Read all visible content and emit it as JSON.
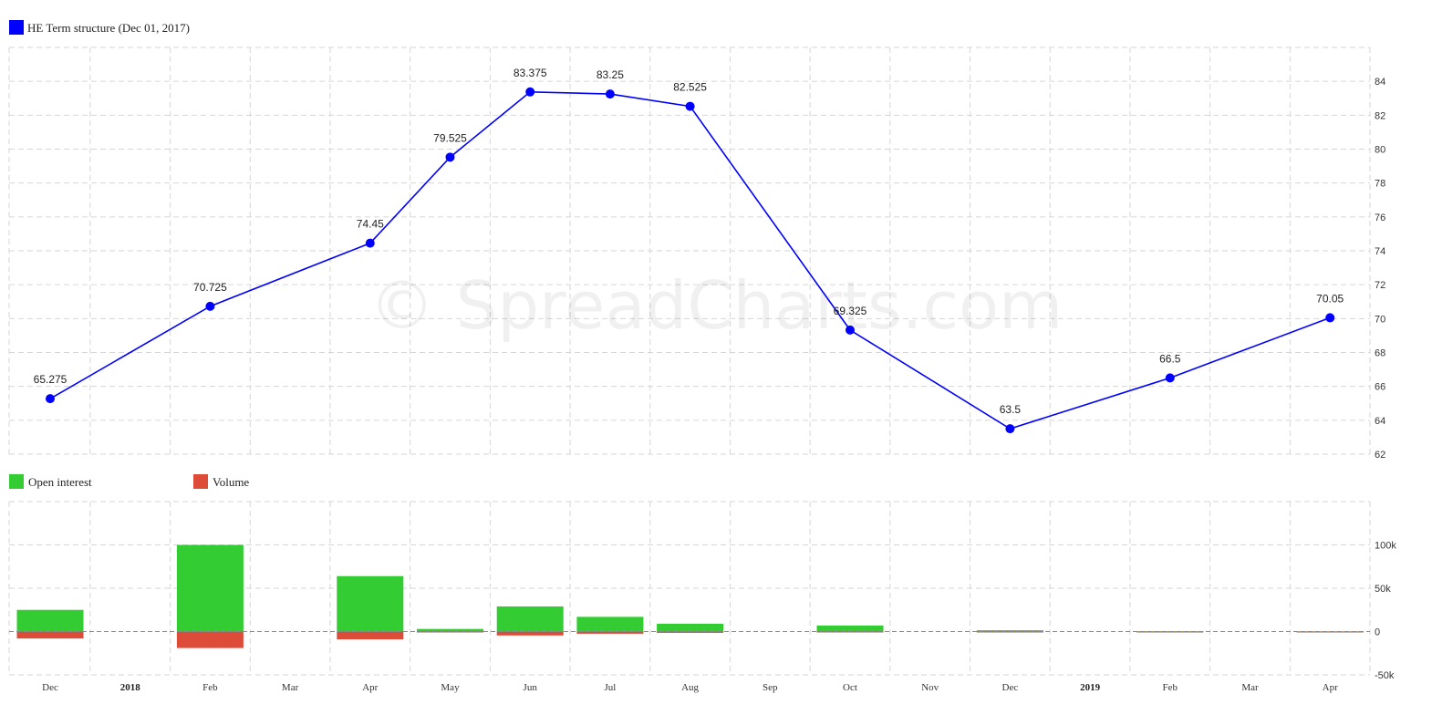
{
  "chart_data": [
    {
      "type": "line",
      "title": "HE Term structure (Dec 01, 2017)",
      "series": [
        {
          "name": "HE Term structure (Dec 01, 2017)",
          "color": "#0000ff",
          "points": [
            {
              "x": "Dec 2017",
              "y": 65.275,
              "label": "65.275"
            },
            {
              "x": "Feb 2018",
              "y": 70.725,
              "label": "70.725"
            },
            {
              "x": "Apr 2018",
              "y": 74.45,
              "label": "74.45"
            },
            {
              "x": "May 2018",
              "y": 79.525,
              "label": "79.525"
            },
            {
              "x": "Jun 2018",
              "y": 83.375,
              "label": "83.375"
            },
            {
              "x": "Jul 2018",
              "y": 83.25,
              "label": "83.25"
            },
            {
              "x": "Aug 2018",
              "y": 82.525,
              "label": "82.525"
            },
            {
              "x": "Oct 2018",
              "y": 69.325,
              "label": "69.325"
            },
            {
              "x": "Dec 2018",
              "y": 63.5,
              "label": "63.5"
            },
            {
              "x": "Feb 2019",
              "y": 66.5,
              "label": "66.5"
            },
            {
              "x": "Apr 2019",
              "y": 70.05,
              "label": "70.05"
            }
          ]
        }
      ],
      "y_ticks": [
        "62",
        "64",
        "66",
        "68",
        "70",
        "72",
        "74",
        "76",
        "78",
        "80",
        "82",
        "84"
      ],
      "ylim": [
        62,
        86
      ],
      "grid": true,
      "legend_position": "top-left"
    },
    {
      "type": "bar",
      "series": [
        {
          "name": "Open interest",
          "color": "#33cc33",
          "points": [
            {
              "x": "Dec 2017",
              "y": 25000
            },
            {
              "x": "Feb 2018",
              "y": 100000
            },
            {
              "x": "Apr 2018",
              "y": 64000
            },
            {
              "x": "May 2018",
              "y": 3000
            },
            {
              "x": "Jun 2018",
              "y": 29000
            },
            {
              "x": "Jul 2018",
              "y": 17000
            },
            {
              "x": "Aug 2018",
              "y": 9000
            },
            {
              "x": "Oct 2018",
              "y": 7000
            },
            {
              "x": "Dec 2018",
              "y": 1500
            },
            {
              "x": "Feb 2019",
              "y": 300
            },
            {
              "x": "Apr 2019",
              "y": 200
            }
          ]
        },
        {
          "name": "Volume",
          "color": "#dd4b39",
          "points": [
            {
              "x": "Dec 2017",
              "y": -8000
            },
            {
              "x": "Feb 2018",
              "y": -19000
            },
            {
              "x": "Apr 2018",
              "y": -9000
            },
            {
              "x": "May 2018",
              "y": -500
            },
            {
              "x": "Jun 2018",
              "y": -4500
            },
            {
              "x": "Jul 2018",
              "y": -2500
            },
            {
              "x": "Aug 2018",
              "y": -1500
            },
            {
              "x": "Oct 2018",
              "y": -500
            },
            {
              "x": "Dec 2018",
              "y": -200
            },
            {
              "x": "Feb 2019",
              "y": -300
            },
            {
              "x": "Apr 2019",
              "y": -200
            }
          ]
        }
      ],
      "y_ticks": [
        {
          "value": -50000,
          "label": "-50k"
        },
        {
          "value": 0,
          "label": "0"
        },
        {
          "value": 50000,
          "label": "50k"
        },
        {
          "value": 100000,
          "label": "100k"
        }
      ],
      "ylim": [
        -50000,
        150000
      ],
      "grid": true,
      "legend_position": "top-left"
    }
  ],
  "x_axis": {
    "labels": [
      {
        "text": "Dec",
        "year": false
      },
      {
        "text": "2018",
        "year": true
      },
      {
        "text": "Feb",
        "year": false
      },
      {
        "text": "Mar",
        "year": false
      },
      {
        "text": "Apr",
        "year": false
      },
      {
        "text": "May",
        "year": false
      },
      {
        "text": "Jun",
        "year": false
      },
      {
        "text": "Jul",
        "year": false
      },
      {
        "text": "Aug",
        "year": false
      },
      {
        "text": "Sep",
        "year": false
      },
      {
        "text": "Oct",
        "year": false
      },
      {
        "text": "Nov",
        "year": false
      },
      {
        "text": "Dec",
        "year": false
      },
      {
        "text": "2019",
        "year": true
      },
      {
        "text": "Feb",
        "year": false
      },
      {
        "text": "Mar",
        "year": false
      },
      {
        "text": "Apr",
        "year": false
      }
    ]
  },
  "watermark": "© SpreadCharts.com"
}
